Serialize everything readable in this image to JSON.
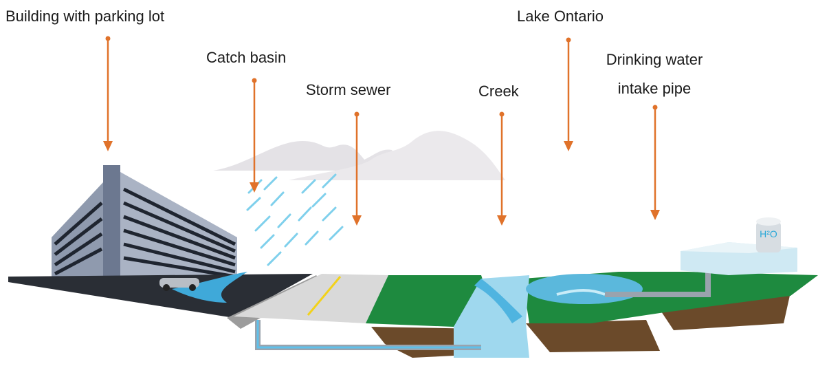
{
  "labels": [
    {
      "lines": [
        "Building with parking lot"
      ]
    },
    {
      "lines": [
        "Catch basin"
      ]
    },
    {
      "lines": [
        "Storm sewer"
      ]
    },
    {
      "lines": [
        "Creek"
      ]
    },
    {
      "lines": [
        "Lake Ontario"
      ]
    },
    {
      "lines": [
        "Drinking water",
        "intake pipe"
      ]
    }
  ],
  "tank_label": "H²O"
}
